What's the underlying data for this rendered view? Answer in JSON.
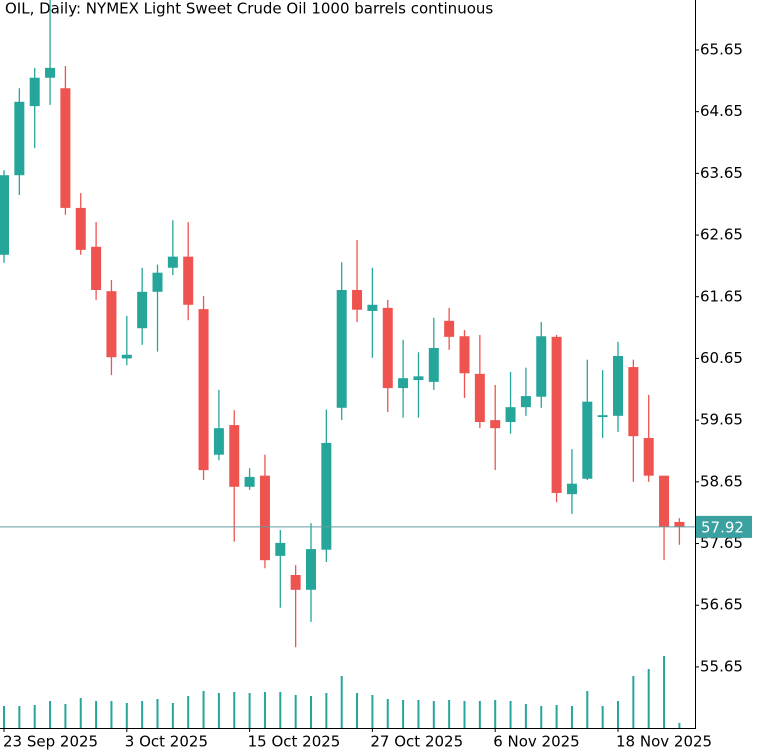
{
  "chart_data": {
    "type": "candlestick",
    "title": "OIL, Daily:  NYMEX Light Sweet Crude Oil 1000 barrels continuous",
    "categories": [
      "23 Sep 2025",
      null,
      null,
      null,
      null,
      null,
      null,
      null,
      "3 Oct 2025",
      null,
      null,
      null,
      null,
      null,
      null,
      null,
      "15 Oct 2025",
      null,
      null,
      null,
      null,
      null,
      null,
      null,
      "27 Oct 2025",
      null,
      null,
      null,
      null,
      null,
      null,
      null,
      "6 Nov 2025",
      null,
      null,
      null,
      null,
      null,
      null,
      null,
      "18 Nov 2025",
      null,
      null,
      null,
      null
    ],
    "open": [
      62.33,
      63.62,
      64.74,
      65.2,
      65.03,
      63.09,
      62.46,
      61.74,
      60.65,
      61.14,
      61.73,
      62.12,
      62.3,
      61.45,
      59.09,
      59.57,
      58.57,
      58.75,
      57.45,
      57.14,
      56.9,
      57.55,
      59.85,
      61.76,
      61.42,
      61.47,
      60.17,
      60.3,
      60.27,
      61.26,
      61.01,
      60.4,
      59.65,
      59.62,
      59.86,
      60.03,
      61.0,
      58.45,
      58.7,
      59.7,
      59.72,
      60.51,
      59.36,
      58.75,
      58.0
    ],
    "high": [
      63.7,
      65.03,
      65.36,
      66.5,
      65.39,
      63.33,
      62.86,
      61.92,
      61.34,
      62.12,
      62.17,
      62.89,
      62.86,
      61.66,
      60.14,
      59.81,
      58.87,
      59.09,
      57.87,
      57.3,
      57.98,
      59.82,
      62.21,
      62.57,
      62.12,
      61.6,
      60.95,
      60.75,
      61.31,
      61.47,
      61.11,
      61.03,
      60.22,
      60.43,
      60.5,
      61.24,
      61.03,
      59.18,
      60.63,
      60.46,
      60.92,
      60.63,
      60.06,
      58.75,
      58.06
    ],
    "low": [
      62.2,
      63.3,
      64.06,
      64.76,
      62.98,
      62.33,
      61.6,
      60.38,
      60.54,
      60.87,
      60.76,
      62.0,
      61.27,
      58.68,
      59.0,
      57.68,
      58.52,
      57.25,
      56.61,
      55.97,
      56.38,
      57.35,
      59.65,
      61.24,
      60.66,
      59.78,
      59.69,
      59.69,
      60.14,
      60.79,
      60.01,
      59.52,
      58.84,
      59.43,
      59.72,
      59.85,
      58.32,
      58.13,
      58.68,
      59.36,
      59.46,
      58.65,
      58.65,
      57.38,
      57.63
    ],
    "close": [
      63.62,
      64.81,
      65.2,
      65.36,
      63.09,
      62.41,
      61.76,
      60.67,
      60.71,
      61.73,
      62.04,
      62.3,
      61.52,
      58.84,
      59.52,
      58.57,
      58.73,
      57.38,
      57.66,
      56.9,
      57.56,
      59.28,
      61.76,
      61.44,
      61.52,
      60.17,
      60.33,
      60.36,
      60.82,
      61.0,
      60.41,
      59.62,
      59.52,
      59.86,
      60.04,
      61.01,
      58.47,
      58.62,
      59.95,
      59.73,
      60.69,
      59.39,
      58.75,
      57.92,
      57.92
    ],
    "volume": [
      22,
      22,
      23,
      27,
      24,
      30,
      27,
      27,
      25,
      27,
      29,
      25,
      32,
      37,
      35,
      36,
      35,
      36,
      36,
      33,
      32,
      35,
      52,
      35,
      33,
      29,
      28,
      28,
      27,
      28,
      27,
      27,
      28,
      27,
      24,
      22,
      23,
      22,
      37,
      22,
      27,
      52,
      59,
      72,
      5
    ],
    "up_color": "#26a69a",
    "down_color": "#ef5350",
    "ylim": [
      54.66,
      66.46
    ],
    "yticks": [
      55.65,
      56.65,
      57.65,
      58.65,
      59.65,
      60.65,
      61.65,
      62.65,
      63.65,
      64.65,
      65.65
    ]
  }
}
